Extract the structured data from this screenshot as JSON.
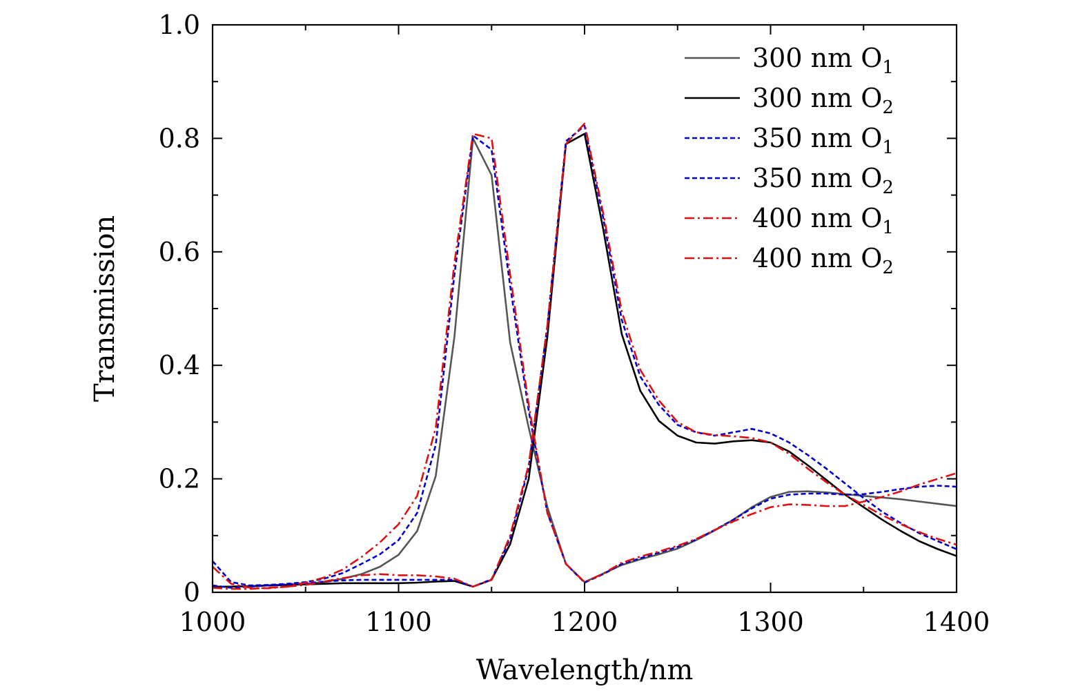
{
  "chart_data": {
    "type": "line",
    "xlabel": "Wavelength/nm",
    "ylabel": "Transmission",
    "xlim": [
      1000,
      1400
    ],
    "ylim": [
      0,
      1.0
    ],
    "x_ticks": [
      1000,
      1100,
      1200,
      1300,
      1400
    ],
    "x_tick_labels": [
      "1000",
      "1100",
      "1200",
      "1300",
      "1400"
    ],
    "y_ticks": [
      0,
      0.2,
      0.4,
      0.6,
      0.8,
      1.0
    ],
    "y_tick_labels": [
      "0",
      "0.2",
      "0.4",
      "0.6",
      "0.8",
      "1.0"
    ],
    "grid": false,
    "legend_position": "top-right",
    "series": [
      {
        "name": "300 nm O1",
        "label_main": "300 nm O",
        "label_sub": "1",
        "color": "#555555",
        "style": "solid",
        "x": [
          1000,
          1010,
          1020,
          1030,
          1040,
          1050,
          1060,
          1070,
          1080,
          1090,
          1100,
          1110,
          1120,
          1130,
          1140,
          1150,
          1160,
          1170,
          1180,
          1190,
          1200,
          1210,
          1220,
          1230,
          1240,
          1250,
          1260,
          1270,
          1280,
          1290,
          1300,
          1310,
          1320,
          1330,
          1340,
          1350,
          1360,
          1370,
          1380,
          1390,
          1400
        ],
        "y": [
          0.01,
          0.01,
          0.011,
          0.012,
          0.013,
          0.015,
          0.018,
          0.024,
          0.032,
          0.045,
          0.066,
          0.108,
          0.205,
          0.45,
          0.8,
          0.735,
          0.44,
          0.29,
          0.15,
          0.05,
          0.018,
          0.033,
          0.048,
          0.058,
          0.067,
          0.077,
          0.092,
          0.109,
          0.128,
          0.15,
          0.168,
          0.177,
          0.178,
          0.176,
          0.173,
          0.17,
          0.167,
          0.164,
          0.16,
          0.156,
          0.152
        ]
      },
      {
        "name": "300 nm O2",
        "label_main": "300 nm O",
        "label_sub": "2",
        "color": "#000000",
        "style": "solid",
        "x": [
          1000,
          1010,
          1020,
          1030,
          1040,
          1050,
          1060,
          1070,
          1080,
          1090,
          1100,
          1110,
          1120,
          1130,
          1140,
          1150,
          1160,
          1170,
          1180,
          1190,
          1200,
          1210,
          1220,
          1230,
          1240,
          1250,
          1260,
          1270,
          1280,
          1290,
          1300,
          1310,
          1320,
          1330,
          1340,
          1350,
          1360,
          1370,
          1380,
          1390,
          1400
        ],
        "y": [
          0.01,
          0.01,
          0.011,
          0.012,
          0.013,
          0.014,
          0.015,
          0.016,
          0.016,
          0.016,
          0.016,
          0.017,
          0.019,
          0.02,
          0.01,
          0.022,
          0.085,
          0.2,
          0.45,
          0.79,
          0.808,
          0.64,
          0.455,
          0.355,
          0.302,
          0.276,
          0.264,
          0.262,
          0.266,
          0.268,
          0.264,
          0.248,
          0.224,
          0.198,
          0.172,
          0.15,
          0.128,
          0.108,
          0.09,
          0.076,
          0.064
        ]
      },
      {
        "name": "350 nm O1",
        "label_main": "350 nm O",
        "label_sub": "1",
        "color": "#0000cc",
        "style": "dashed",
        "x": [
          1000,
          1010,
          1020,
          1030,
          1040,
          1050,
          1060,
          1070,
          1080,
          1090,
          1100,
          1110,
          1120,
          1130,
          1140,
          1150,
          1160,
          1170,
          1180,
          1190,
          1200,
          1210,
          1220,
          1230,
          1240,
          1250,
          1260,
          1270,
          1280,
          1290,
          1300,
          1310,
          1320,
          1330,
          1340,
          1350,
          1360,
          1370,
          1380,
          1390,
          1400
        ],
        "y": [
          0.055,
          0.018,
          0.012,
          0.013,
          0.015,
          0.018,
          0.024,
          0.034,
          0.05,
          0.067,
          0.092,
          0.14,
          0.26,
          0.56,
          0.805,
          0.78,
          0.54,
          0.32,
          0.14,
          0.05,
          0.017,
          0.032,
          0.05,
          0.06,
          0.07,
          0.08,
          0.093,
          0.11,
          0.128,
          0.148,
          0.165,
          0.172,
          0.174,
          0.174,
          0.172,
          0.173,
          0.177,
          0.182,
          0.186,
          0.188,
          0.186
        ]
      },
      {
        "name": "350 nm O2",
        "label_main": "350 nm O",
        "label_sub": "2",
        "color": "#0000cc",
        "style": "dashed",
        "x": [
          1000,
          1010,
          1020,
          1030,
          1040,
          1050,
          1060,
          1070,
          1080,
          1090,
          1100,
          1110,
          1120,
          1130,
          1140,
          1150,
          1160,
          1170,
          1180,
          1190,
          1200,
          1210,
          1220,
          1230,
          1240,
          1250,
          1260,
          1270,
          1280,
          1290,
          1300,
          1310,
          1320,
          1330,
          1340,
          1350,
          1360,
          1370,
          1380,
          1390,
          1400
        ],
        "y": [
          0.012,
          0.008,
          0.01,
          0.012,
          0.014,
          0.016,
          0.019,
          0.021,
          0.022,
          0.022,
          0.022,
          0.022,
          0.022,
          0.022,
          0.01,
          0.023,
          0.095,
          0.22,
          0.47,
          0.795,
          0.822,
          0.66,
          0.48,
          0.38,
          0.33,
          0.295,
          0.282,
          0.276,
          0.282,
          0.288,
          0.28,
          0.264,
          0.242,
          0.218,
          0.192,
          0.166,
          0.142,
          0.122,
          0.104,
          0.09,
          0.076
        ]
      },
      {
        "name": "400 nm O1",
        "label_main": "400 nm O",
        "label_sub": "1",
        "color": "#dd1111",
        "style": "dashdot",
        "x": [
          1000,
          1010,
          1020,
          1030,
          1040,
          1050,
          1060,
          1070,
          1080,
          1090,
          1100,
          1110,
          1120,
          1130,
          1140,
          1150,
          1160,
          1170,
          1180,
          1190,
          1200,
          1210,
          1220,
          1230,
          1240,
          1250,
          1260,
          1270,
          1280,
          1290,
          1300,
          1310,
          1320,
          1330,
          1340,
          1350,
          1360,
          1370,
          1380,
          1390,
          1400
        ],
        "y": [
          0.045,
          0.015,
          0.008,
          0.007,
          0.01,
          0.017,
          0.026,
          0.04,
          0.062,
          0.088,
          0.12,
          0.17,
          0.29,
          0.58,
          0.808,
          0.8,
          0.56,
          0.33,
          0.14,
          0.05,
          0.018,
          0.033,
          0.052,
          0.063,
          0.072,
          0.082,
          0.094,
          0.11,
          0.125,
          0.138,
          0.15,
          0.155,
          0.154,
          0.152,
          0.152,
          0.16,
          0.168,
          0.178,
          0.19,
          0.2,
          0.21
        ]
      },
      {
        "name": "400 nm O2",
        "label_main": "400 nm O",
        "label_sub": "2",
        "color": "#dd1111",
        "style": "dashdot",
        "x": [
          1000,
          1010,
          1020,
          1030,
          1040,
          1050,
          1060,
          1070,
          1080,
          1090,
          1100,
          1110,
          1120,
          1130,
          1140,
          1150,
          1160,
          1170,
          1180,
          1190,
          1200,
          1210,
          1220,
          1230,
          1240,
          1250,
          1260,
          1270,
          1280,
          1290,
          1300,
          1310,
          1320,
          1330,
          1340,
          1350,
          1360,
          1370,
          1380,
          1390,
          1400
        ],
        "y": [
          0.008,
          0.006,
          0.006,
          0.008,
          0.01,
          0.013,
          0.019,
          0.025,
          0.03,
          0.032,
          0.03,
          0.03,
          0.028,
          0.024,
          0.01,
          0.022,
          0.1,
          0.225,
          0.47,
          0.79,
          0.826,
          0.668,
          0.495,
          0.392,
          0.338,
          0.3,
          0.282,
          0.277,
          0.275,
          0.272,
          0.264,
          0.244,
          0.218,
          0.194,
          0.172,
          0.154,
          0.136,
          0.12,
          0.106,
          0.094,
          0.084
        ]
      }
    ]
  }
}
